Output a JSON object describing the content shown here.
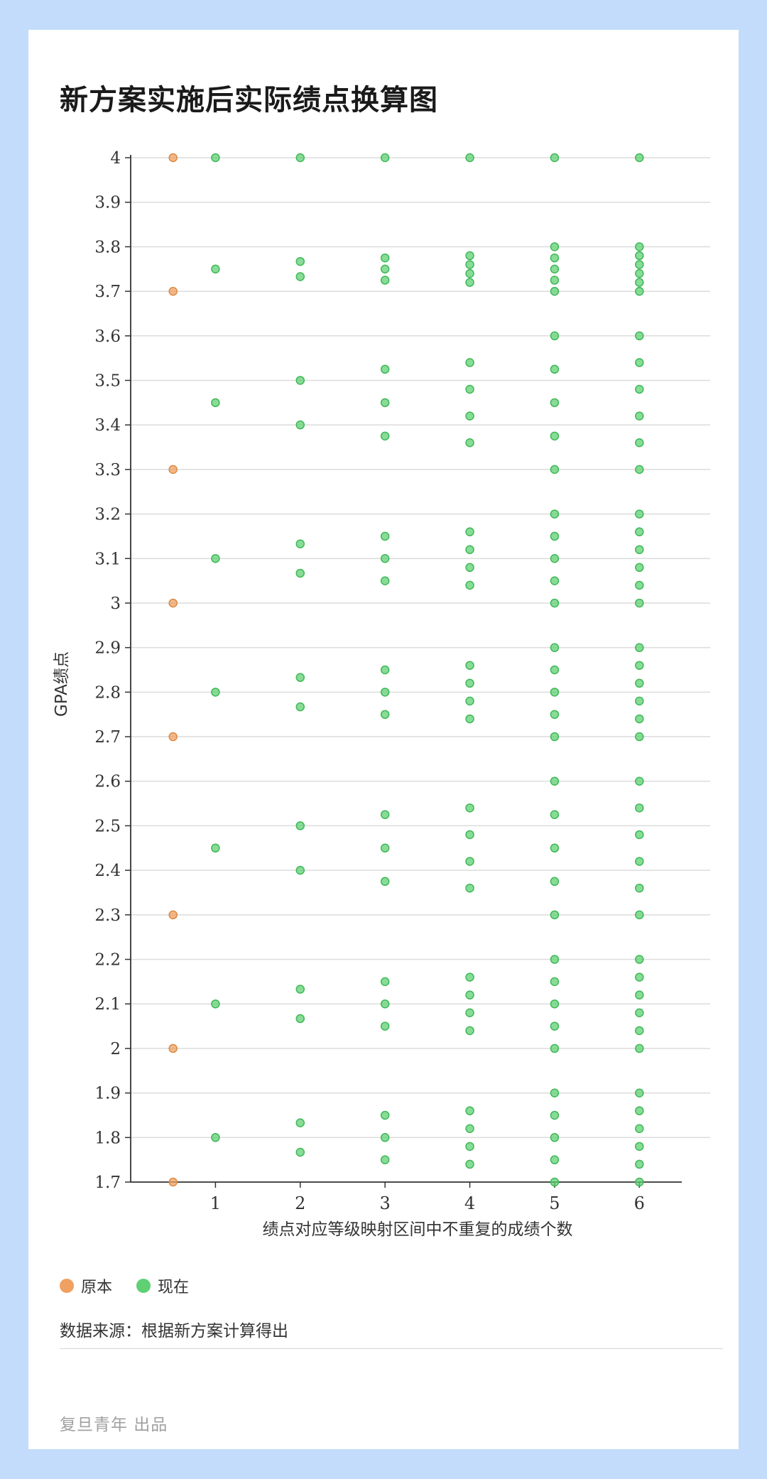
{
  "title": "新方案实施后实际绩点换算图",
  "legend": [
    {
      "label": "原本",
      "color": "#f0a060"
    },
    {
      "label": "现在",
      "color": "#5fd074"
    }
  ],
  "source": "数据来源：根据新方案计算得出",
  "credit": "复旦青年 出品",
  "chart_data": {
    "type": "scatter",
    "title": "新方案实施后实际绩点换算图",
    "xlabel": "绩点对应等级映射区间中不重复的成绩个数",
    "ylabel": "GPA绩点",
    "xlim": [
      0,
      6.5
    ],
    "ylim": [
      1.7,
      4
    ],
    "yticks": [
      "1.7",
      "1.8",
      "1.9",
      "2",
      "2.1",
      "2.2",
      "2.3",
      "2.4",
      "2.5",
      "2.6",
      "2.7",
      "2.8",
      "2.9",
      "3",
      "3.1",
      "3.2",
      "3.3",
      "3.4",
      "3.5",
      "3.6",
      "3.7",
      "3.8",
      "3.9",
      "4"
    ],
    "xticks": [
      "1",
      "2",
      "3",
      "4",
      "5",
      "6"
    ],
    "grid": true,
    "legend_position": "bottom-left",
    "series": [
      {
        "name": "原本",
        "color": "#f0a060",
        "points": [
          [
            0.5,
            4
          ],
          [
            0.5,
            3.7
          ],
          [
            0.5,
            3.3
          ],
          [
            0.5,
            3
          ],
          [
            0.5,
            2.7
          ],
          [
            0.5,
            2.3
          ],
          [
            0.5,
            2
          ],
          [
            0.5,
            1.7
          ]
        ]
      },
      {
        "name": "现在",
        "color": "#5fd074",
        "points": [
          [
            1,
            4
          ],
          [
            1,
            3.75
          ],
          [
            1,
            3.45
          ],
          [
            1,
            3.1
          ],
          [
            1,
            2.8
          ],
          [
            1,
            2.45
          ],
          [
            1,
            2.1
          ],
          [
            1,
            1.8
          ],
          [
            2,
            4
          ],
          [
            2,
            3.767
          ],
          [
            2,
            3.733
          ],
          [
            2,
            3.5
          ],
          [
            2,
            3.4
          ],
          [
            2,
            3.133
          ],
          [
            2,
            3.067
          ],
          [
            2,
            2.833
          ],
          [
            2,
            2.767
          ],
          [
            2,
            2.5
          ],
          [
            2,
            2.4
          ],
          [
            2,
            2.133
          ],
          [
            2,
            2.067
          ],
          [
            2,
            1.833
          ],
          [
            2,
            1.767
          ],
          [
            3,
            4
          ],
          [
            3,
            3.775
          ],
          [
            3,
            3.75
          ],
          [
            3,
            3.725
          ],
          [
            3,
            3.525
          ],
          [
            3,
            3.45
          ],
          [
            3,
            3.375
          ],
          [
            3,
            3.15
          ],
          [
            3,
            3.1
          ],
          [
            3,
            3.05
          ],
          [
            3,
            2.85
          ],
          [
            3,
            2.8
          ],
          [
            3,
            2.75
          ],
          [
            3,
            2.525
          ],
          [
            3,
            2.45
          ],
          [
            3,
            2.375
          ],
          [
            3,
            2.15
          ],
          [
            3,
            2.1
          ],
          [
            3,
            2.05
          ],
          [
            3,
            1.85
          ],
          [
            3,
            1.8
          ],
          [
            3,
            1.75
          ],
          [
            4,
            4
          ],
          [
            4,
            3.78
          ],
          [
            4,
            3.76
          ],
          [
            4,
            3.74
          ],
          [
            4,
            3.72
          ],
          [
            4,
            3.54
          ],
          [
            4,
            3.48
          ],
          [
            4,
            3.42
          ],
          [
            4,
            3.36
          ],
          [
            4,
            3.16
          ],
          [
            4,
            3.12
          ],
          [
            4,
            3.08
          ],
          [
            4,
            3.04
          ],
          [
            4,
            2.86
          ],
          [
            4,
            2.82
          ],
          [
            4,
            2.78
          ],
          [
            4,
            2.74
          ],
          [
            4,
            2.54
          ],
          [
            4,
            2.48
          ],
          [
            4,
            2.42
          ],
          [
            4,
            2.36
          ],
          [
            4,
            2.16
          ],
          [
            4,
            2.12
          ],
          [
            4,
            2.08
          ],
          [
            4,
            2.04
          ],
          [
            4,
            1.86
          ],
          [
            4,
            1.82
          ],
          [
            4,
            1.78
          ],
          [
            4,
            1.74
          ],
          [
            5,
            4
          ],
          [
            5,
            3.8
          ],
          [
            5,
            3.775
          ],
          [
            5,
            3.75
          ],
          [
            5,
            3.725
          ],
          [
            5,
            3.7
          ],
          [
            5,
            3.6
          ],
          [
            5,
            3.525
          ],
          [
            5,
            3.45
          ],
          [
            5,
            3.375
          ],
          [
            5,
            3.3
          ],
          [
            5,
            3.2
          ],
          [
            5,
            3.15
          ],
          [
            5,
            3.1
          ],
          [
            5,
            3.05
          ],
          [
            5,
            3
          ],
          [
            5,
            2.9
          ],
          [
            5,
            2.85
          ],
          [
            5,
            2.8
          ],
          [
            5,
            2.75
          ],
          [
            5,
            2.7
          ],
          [
            5,
            2.6
          ],
          [
            5,
            2.525
          ],
          [
            5,
            2.45
          ],
          [
            5,
            2.375
          ],
          [
            5,
            2.3
          ],
          [
            5,
            2.2
          ],
          [
            5,
            2.15
          ],
          [
            5,
            2.1
          ],
          [
            5,
            2.05
          ],
          [
            5,
            2
          ],
          [
            5,
            1.9
          ],
          [
            5,
            1.85
          ],
          [
            5,
            1.8
          ],
          [
            5,
            1.75
          ],
          [
            5,
            1.7
          ],
          [
            6,
            4
          ],
          [
            6,
            3.8
          ],
          [
            6,
            3.78
          ],
          [
            6,
            3.76
          ],
          [
            6,
            3.74
          ],
          [
            6,
            3.72
          ],
          [
            6,
            3.7
          ],
          [
            6,
            3.6
          ],
          [
            6,
            3.54
          ],
          [
            6,
            3.48
          ],
          [
            6,
            3.42
          ],
          [
            6,
            3.36
          ],
          [
            6,
            3.3
          ],
          [
            6,
            3.2
          ],
          [
            6,
            3.16
          ],
          [
            6,
            3.12
          ],
          [
            6,
            3.08
          ],
          [
            6,
            3.04
          ],
          [
            6,
            3
          ],
          [
            6,
            2.9
          ],
          [
            6,
            2.86
          ],
          [
            6,
            2.82
          ],
          [
            6,
            2.78
          ],
          [
            6,
            2.74
          ],
          [
            6,
            2.7
          ],
          [
            6,
            2.6
          ],
          [
            6,
            2.54
          ],
          [
            6,
            2.48
          ],
          [
            6,
            2.42
          ],
          [
            6,
            2.36
          ],
          [
            6,
            2.3
          ],
          [
            6,
            2.2
          ],
          [
            6,
            2.16
          ],
          [
            6,
            2.12
          ],
          [
            6,
            2.08
          ],
          [
            6,
            2.04
          ],
          [
            6,
            2
          ],
          [
            6,
            1.9
          ],
          [
            6,
            1.86
          ],
          [
            6,
            1.82
          ],
          [
            6,
            1.78
          ],
          [
            6,
            1.74
          ],
          [
            6,
            1.7
          ]
        ]
      }
    ]
  }
}
